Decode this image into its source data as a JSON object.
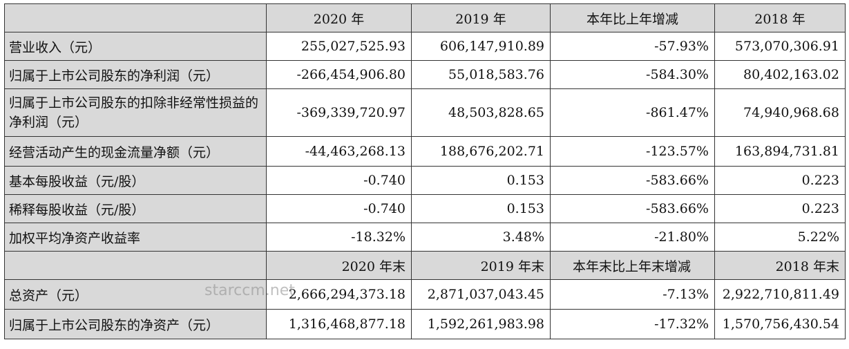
{
  "headers": {
    "row1": [
      "",
      "2020 年",
      "2019 年",
      "本年比上年增减",
      "2018 年"
    ],
    "row2": [
      "",
      "2020 年末",
      "2019 年末",
      "本年末比上年末增减",
      "2018 年末"
    ]
  },
  "rows": [
    {
      "label": "营业收入（元）",
      "v2020": "255,027,525.93",
      "v2019": "606,147,910.89",
      "change": "-57.93%",
      "v2018": "573,070,306.91"
    },
    {
      "label": "归属于上市公司股东的净利润（元）",
      "v2020": "-266,454,906.80",
      "v2019": "55,018,583.76",
      "change": "-584.30%",
      "v2018": "80,402,163.02"
    },
    {
      "label": "归属于上市公司股东的扣除非经常性损益的净利润（元）",
      "v2020": "-369,339,720.97",
      "v2019": "48,503,828.65",
      "change": "-861.47%",
      "v2018": "74,940,968.68"
    },
    {
      "label": "经营活动产生的现金流量净额（元）",
      "v2020": "-44,463,268.13",
      "v2019": "188,676,202.71",
      "change": "-123.57%",
      "v2018": "163,894,731.81"
    },
    {
      "label": "基本每股收益（元/股）",
      "v2020": "-0.740",
      "v2019": "0.153",
      "change": "-583.66%",
      "v2018": "0.223"
    },
    {
      "label": "稀释每股收益（元/股）",
      "v2020": "-0.740",
      "v2019": "0.153",
      "change": "-583.66%",
      "v2018": "0.223"
    },
    {
      "label": "加权平均净资产收益率",
      "v2020": "-18.32%",
      "v2019": "3.48%",
      "change": "-21.80%",
      "v2018": "5.22%"
    }
  ],
  "rows2": [
    {
      "label": "总资产（元）",
      "v2020": "2,666,294,373.18",
      "v2019": "2,871,037,043.45",
      "change": "-7.13%",
      "v2018": "2,922,710,811.49"
    },
    {
      "label": "归属于上市公司股东的净资产（元）",
      "v2020": "1,316,468,877.18",
      "v2019": "1,592,261,983.98",
      "change": "-17.32%",
      "v2018": "1,570,756,430.54"
    }
  ],
  "watermark": "starccm.net"
}
